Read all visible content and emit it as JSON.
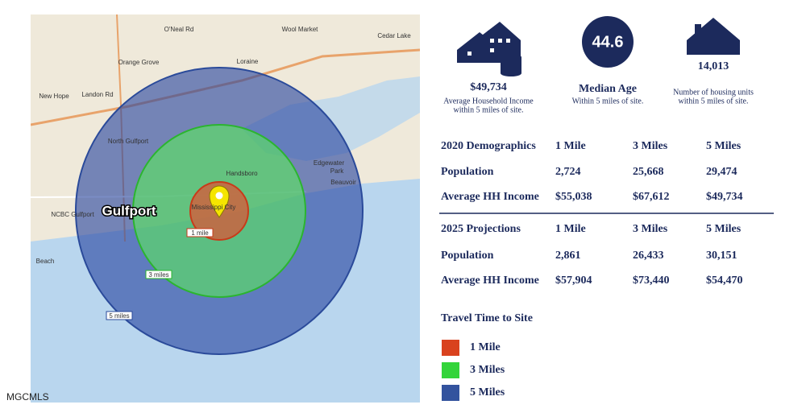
{
  "map": {
    "places": [
      "Wool Market",
      "Cedar Lake",
      "O'Neal Rd",
      "Orange Grove",
      "Loraine",
      "New Hope",
      "Landon Rd",
      "North Gulfport",
      "Handsboro",
      "Edgewater",
      "Park",
      "Beauvoir",
      "NCBC Gulfport",
      "Mississippi City",
      "Beach"
    ],
    "city": "Gulfport",
    "rings": [
      "1 mile",
      "3 miles",
      "5 miles"
    ]
  },
  "stats": [
    {
      "value": "$49,734",
      "label": [
        "Average Household Income",
        "within 5 miles of site."
      ]
    },
    {
      "value": "44.6",
      "label": [
        "Median Age",
        "Within 5 miles of site."
      ]
    },
    {
      "value": "14,013",
      "label": [
        "Number of housing units",
        "within 5 miles of site."
      ]
    }
  ],
  "tables": [
    {
      "header": [
        "2020 Demographics",
        "1 Mile",
        "3 Miles",
        "5 Miles"
      ],
      "rows": [
        [
          "Population",
          "2,724",
          "25,668",
          "29,474"
        ],
        [
          "Average HH Income",
          "$55,038",
          "$67,612",
          "$49,734"
        ]
      ]
    },
    {
      "header": [
        "2025 Projections",
        "1 Mile",
        "3 Miles",
        "5 Miles"
      ],
      "rows": [
        [
          "Population",
          "2,861",
          "26,433",
          "30,151"
        ],
        [
          "Average HH Income",
          "$57,904",
          "$73,440",
          "$54,470"
        ]
      ]
    }
  ],
  "legend": {
    "title": "Travel Time to Site",
    "items": [
      "1 Mile",
      "3 Miles",
      "5 Miles"
    ],
    "colors": [
      "#d9421e",
      "#33d43a",
      "#33539e"
    ]
  },
  "watermark": "MGCMLS"
}
